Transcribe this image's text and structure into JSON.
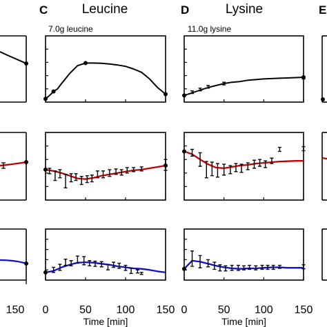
{
  "chart_data": {
    "type": "line",
    "panel_letters": [
      "C",
      "D",
      "E"
    ],
    "xlim": [
      0,
      150
    ],
    "xticks": [
      0,
      50,
      100,
      150
    ],
    "left_partial_xtick": "150",
    "xlabel": "Time [min]",
    "colors": {
      "model": "#000000",
      "top": "#000000",
      "mid": "#c00000",
      "bottom": "#1010c8",
      "data": "#000000"
    },
    "panels": [
      {
        "letter": "C",
        "title": "Leucine",
        "dose": "7.0g leucine",
        "rows": [
          {
            "ylim": [
              0,
              1
            ],
            "curve": [
              [
                0,
                0.05
              ],
              [
                5,
                0.1
              ],
              [
                10,
                0.16
              ],
              [
                15,
                0.2
              ],
              [
                20,
                0.28
              ],
              [
                30,
                0.43
              ],
              [
                40,
                0.55
              ],
              [
                50,
                0.59
              ],
              [
                60,
                0.59
              ],
              [
                70,
                0.585
              ],
              [
                80,
                0.575
              ],
              [
                90,
                0.56
              ],
              [
                100,
                0.54
              ],
              [
                110,
                0.5
              ],
              [
                120,
                0.45
              ],
              [
                130,
                0.35
              ],
              [
                140,
                0.22
              ],
              [
                150,
                0.12
              ]
            ],
            "markers": [
              [
                0,
                0.05
              ],
              [
                10,
                0.16
              ],
              [
                50,
                0.59
              ],
              [
                150,
                0.12
              ]
            ],
            "errorbars": []
          },
          {
            "ylim": [
              0,
              1
            ],
            "curve": [
              [
                0,
                0.45
              ],
              [
                10,
                0.43
              ],
              [
                20,
                0.4
              ],
              [
                30,
                0.36
              ],
              [
                40,
                0.32
              ],
              [
                50,
                0.31
              ],
              [
                60,
                0.33
              ],
              [
                70,
                0.36
              ],
              [
                80,
                0.38
              ],
              [
                90,
                0.4
              ],
              [
                100,
                0.42
              ],
              [
                110,
                0.44
              ],
              [
                120,
                0.45
              ],
              [
                130,
                0.47
              ],
              [
                140,
                0.49
              ],
              [
                150,
                0.51
              ]
            ],
            "markers": [
              [
                0,
                0.45
              ],
              [
                150,
                0.51
              ]
            ],
            "errorbars": [
              [
                5,
                0.43,
                0.04
              ],
              [
                12,
                0.36,
                0.07
              ],
              [
                18,
                0.39,
                0.06
              ],
              [
                25,
                0.28,
                0.1
              ],
              [
                32,
                0.33,
                0.06
              ],
              [
                38,
                0.34,
                0.05
              ],
              [
                45,
                0.29,
                0.06
              ],
              [
                52,
                0.31,
                0.05
              ],
              [
                58,
                0.32,
                0.05
              ],
              [
                65,
                0.38,
                0.05
              ],
              [
                72,
                0.38,
                0.05
              ],
              [
                80,
                0.4,
                0.05
              ],
              [
                88,
                0.42,
                0.04
              ],
              [
                95,
                0.41,
                0.04
              ],
              [
                102,
                0.44,
                0.04
              ],
              [
                110,
                0.45,
                0.03
              ],
              [
                120,
                0.46,
                0.03
              ],
              [
                150,
                0.52,
                0.08
              ]
            ]
          },
          {
            "ylim": [
              0,
              1
            ],
            "curve": [
              [
                0,
                0.15
              ],
              [
                10,
                0.18
              ],
              [
                20,
                0.25
              ],
              [
                30,
                0.3
              ],
              [
                40,
                0.34
              ],
              [
                50,
                0.35
              ],
              [
                60,
                0.34
              ],
              [
                70,
                0.32
              ],
              [
                80,
                0.3
              ],
              [
                90,
                0.27
              ],
              [
                100,
                0.25
              ],
              [
                110,
                0.23
              ],
              [
                120,
                0.22
              ],
              [
                130,
                0.2
              ],
              [
                140,
                0.17
              ],
              [
                150,
                0.15
              ]
            ],
            "markers": [
              [
                0,
                0.15
              ]
            ],
            "errorbars": [
              [
                10,
                0.2,
                0.05
              ],
              [
                18,
                0.25,
                0.06
              ],
              [
                25,
                0.35,
                0.06
              ],
              [
                32,
                0.33,
                0.05
              ],
              [
                40,
                0.4,
                0.07
              ],
              [
                48,
                0.38,
                0.08
              ],
              [
                55,
                0.33,
                0.05
              ],
              [
                62,
                0.32,
                0.05
              ],
              [
                70,
                0.31,
                0.05
              ],
              [
                78,
                0.25,
                0.05
              ],
              [
                85,
                0.3,
                0.05
              ],
              [
                92,
                0.28,
                0.05
              ],
              [
                100,
                0.24,
                0.05
              ],
              [
                107,
                0.18,
                0.05
              ],
              [
                115,
                0.17,
                0.03
              ],
              [
                120,
                0.13,
                0.02
              ]
            ]
          }
        ]
      },
      {
        "letter": "D",
        "title": "Lysine",
        "dose": "11.0g lysine",
        "rows": [
          {
            "ylim": [
              0,
              1
            ],
            "curve": [
              [
                0,
                0.1
              ],
              [
                10,
                0.14
              ],
              [
                20,
                0.18
              ],
              [
                30,
                0.22
              ],
              [
                40,
                0.25
              ],
              [
                50,
                0.28
              ],
              [
                60,
                0.3
              ],
              [
                70,
                0.31
              ],
              [
                80,
                0.33
              ],
              [
                90,
                0.34
              ],
              [
                100,
                0.35
              ],
              [
                110,
                0.355
              ],
              [
                120,
                0.36
              ],
              [
                130,
                0.365
              ],
              [
                140,
                0.37
              ],
              [
                150,
                0.375
              ]
            ],
            "markers": [
              [
                0,
                0.1
              ],
              [
                150,
                0.375
              ]
            ],
            "errorbars": [
              [
                10,
                0.15,
                0.02
              ],
              [
                20,
                0.19,
                0.02
              ],
              [
                30,
                0.23,
                0.02
              ],
              [
                50,
                0.28,
                0.02
              ],
              [
                150,
                0.37,
                0.02
              ]
            ]
          },
          {
            "ylim": [
              0,
              1
            ],
            "curve": [
              [
                0,
                0.72
              ],
              [
                10,
                0.68
              ],
              [
                20,
                0.6
              ],
              [
                30,
                0.53
              ],
              [
                40,
                0.48
              ],
              [
                50,
                0.47
              ],
              [
                60,
                0.49
              ],
              [
                70,
                0.51
              ],
              [
                80,
                0.52
              ],
              [
                90,
                0.54
              ],
              [
                100,
                0.55
              ],
              [
                110,
                0.56
              ],
              [
                120,
                0.57
              ],
              [
                130,
                0.575
              ],
              [
                140,
                0.58
              ],
              [
                150,
                0.58
              ]
            ],
            "markers": [
              [
                0,
                0.72
              ]
            ],
            "errorbars": [
              [
                10,
                0.7,
                0.05
              ],
              [
                20,
                0.6,
                0.1
              ],
              [
                28,
                0.45,
                0.12
              ],
              [
                35,
                0.46,
                0.1
              ],
              [
                42,
                0.44,
                0.1
              ],
              [
                50,
                0.45,
                0.08
              ],
              [
                58,
                0.45,
                0.06
              ],
              [
                65,
                0.48,
                0.06
              ],
              [
                72,
                0.47,
                0.06
              ],
              [
                80,
                0.5,
                0.05
              ],
              [
                88,
                0.53,
                0.06
              ],
              [
                95,
                0.55,
                0.05
              ],
              [
                102,
                0.53,
                0.05
              ],
              [
                110,
                0.58,
                0.04
              ],
              [
                120,
                0.75,
                0.03
              ],
              [
                150,
                0.76,
                0.03
              ]
            ]
          },
          {
            "ylim": [
              0,
              1
            ],
            "curve": [
              [
                0,
                0.22
              ],
              [
                10,
                0.38
              ],
              [
                20,
                0.36
              ],
              [
                30,
                0.32
              ],
              [
                40,
                0.28
              ],
              [
                50,
                0.25
              ],
              [
                60,
                0.23
              ],
              [
                70,
                0.22
              ],
              [
                80,
                0.23
              ],
              [
                90,
                0.23
              ],
              [
                100,
                0.24
              ],
              [
                110,
                0.25
              ],
              [
                120,
                0.25
              ],
              [
                130,
                0.24
              ],
              [
                140,
                0.24
              ],
              [
                150,
                0.24
              ]
            ],
            "markers": [
              [
                0,
                0.22
              ]
            ],
            "errorbars": [
              [
                10,
                0.42,
                0.15
              ],
              [
                20,
                0.36,
                0.12
              ],
              [
                30,
                0.33,
                0.07
              ],
              [
                38,
                0.28,
                0.07
              ],
              [
                45,
                0.24,
                0.06
              ],
              [
                52,
                0.23,
                0.05
              ],
              [
                60,
                0.24,
                0.05
              ],
              [
                68,
                0.24,
                0.05
              ],
              [
                75,
                0.24,
                0.04
              ],
              [
                82,
                0.25,
                0.04
              ],
              [
                90,
                0.24,
                0.04
              ],
              [
                98,
                0.25,
                0.04
              ],
              [
                105,
                0.25,
                0.04
              ],
              [
                112,
                0.25,
                0.04
              ],
              [
                120,
                0.26,
                0.03
              ],
              [
                150,
                0.26,
                0.04
              ]
            ]
          }
        ]
      }
    ]
  }
}
